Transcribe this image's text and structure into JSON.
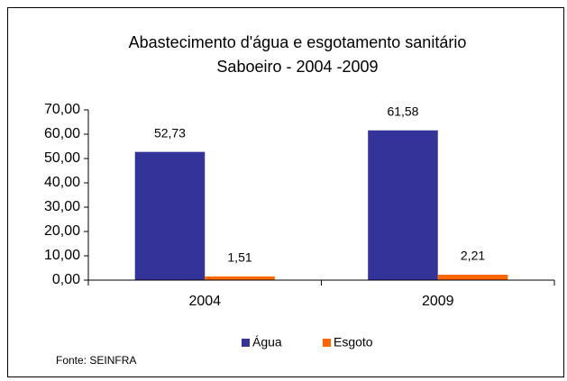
{
  "chart_data": {
    "type": "bar",
    "title": "Abastecimento d'água e esgotamento sanitário",
    "subtitle": "Saboeiro - 2004 -2009",
    "categories": [
      "2004",
      "2009"
    ],
    "series": [
      {
        "name": "Água",
        "color": "#333399",
        "values": [
          52.73,
          61.58
        ],
        "value_labels": [
          "52,73",
          "61,58"
        ]
      },
      {
        "name": "Esgoto",
        "color": "#ff6600",
        "values": [
          1.51,
          2.21
        ],
        "value_labels": [
          "1,51",
          "2,21"
        ]
      }
    ],
    "ylim": [
      0,
      70
    ],
    "yticks": [
      {
        "value": 0,
        "label": "0,00"
      },
      {
        "value": 10,
        "label": "10,00"
      },
      {
        "value": 20,
        "label": "20,00"
      },
      {
        "value": 30,
        "label": "30,00"
      },
      {
        "value": 40,
        "label": "40,00"
      },
      {
        "value": 50,
        "label": "50,00"
      },
      {
        "value": 60,
        "label": "60,00"
      },
      {
        "value": 70,
        "label": "70,00"
      }
    ],
    "grid": false,
    "legend": "bottom",
    "source": "Fonte: SEINFRA"
  }
}
